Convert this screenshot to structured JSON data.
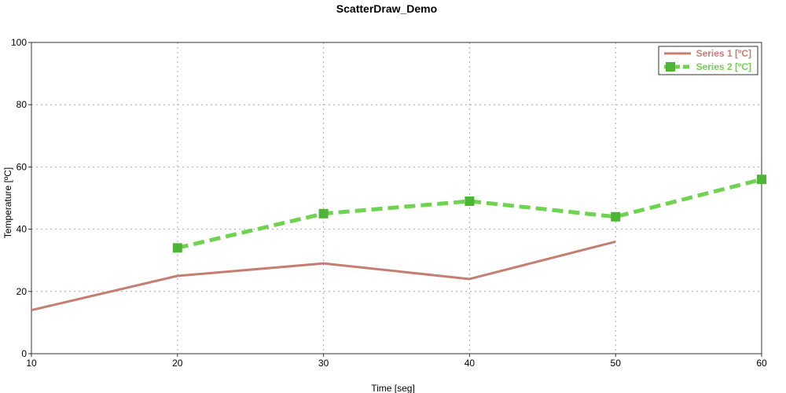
{
  "chart_data": {
    "type": "line",
    "title": "ScatterDraw_Demo",
    "xlabel": "Time [seg]",
    "ylabel": "Temperature [ºC]",
    "xlim": [
      10,
      60
    ],
    "ylim": [
      0,
      100
    ],
    "xticks": [
      10,
      20,
      30,
      40,
      50,
      60
    ],
    "yticks": [
      0,
      20,
      40,
      60,
      80,
      100
    ],
    "grid": true,
    "legend_position": "top-right",
    "series": [
      {
        "name": "Series 1 [ºC]",
        "color": "#c47f72",
        "style": "solid",
        "marker": "none",
        "x": [
          10,
          20,
          30,
          40,
          50
        ],
        "y": [
          14,
          25,
          29,
          24,
          36
        ]
      },
      {
        "name": "Series 2 [ºC]",
        "color": "#6ed34e",
        "marker_color": "#4db533",
        "style": "dashed",
        "marker": "square",
        "x": [
          20,
          30,
          40,
          50,
          60
        ],
        "y": [
          34,
          45,
          49,
          44,
          56
        ]
      }
    ]
  }
}
